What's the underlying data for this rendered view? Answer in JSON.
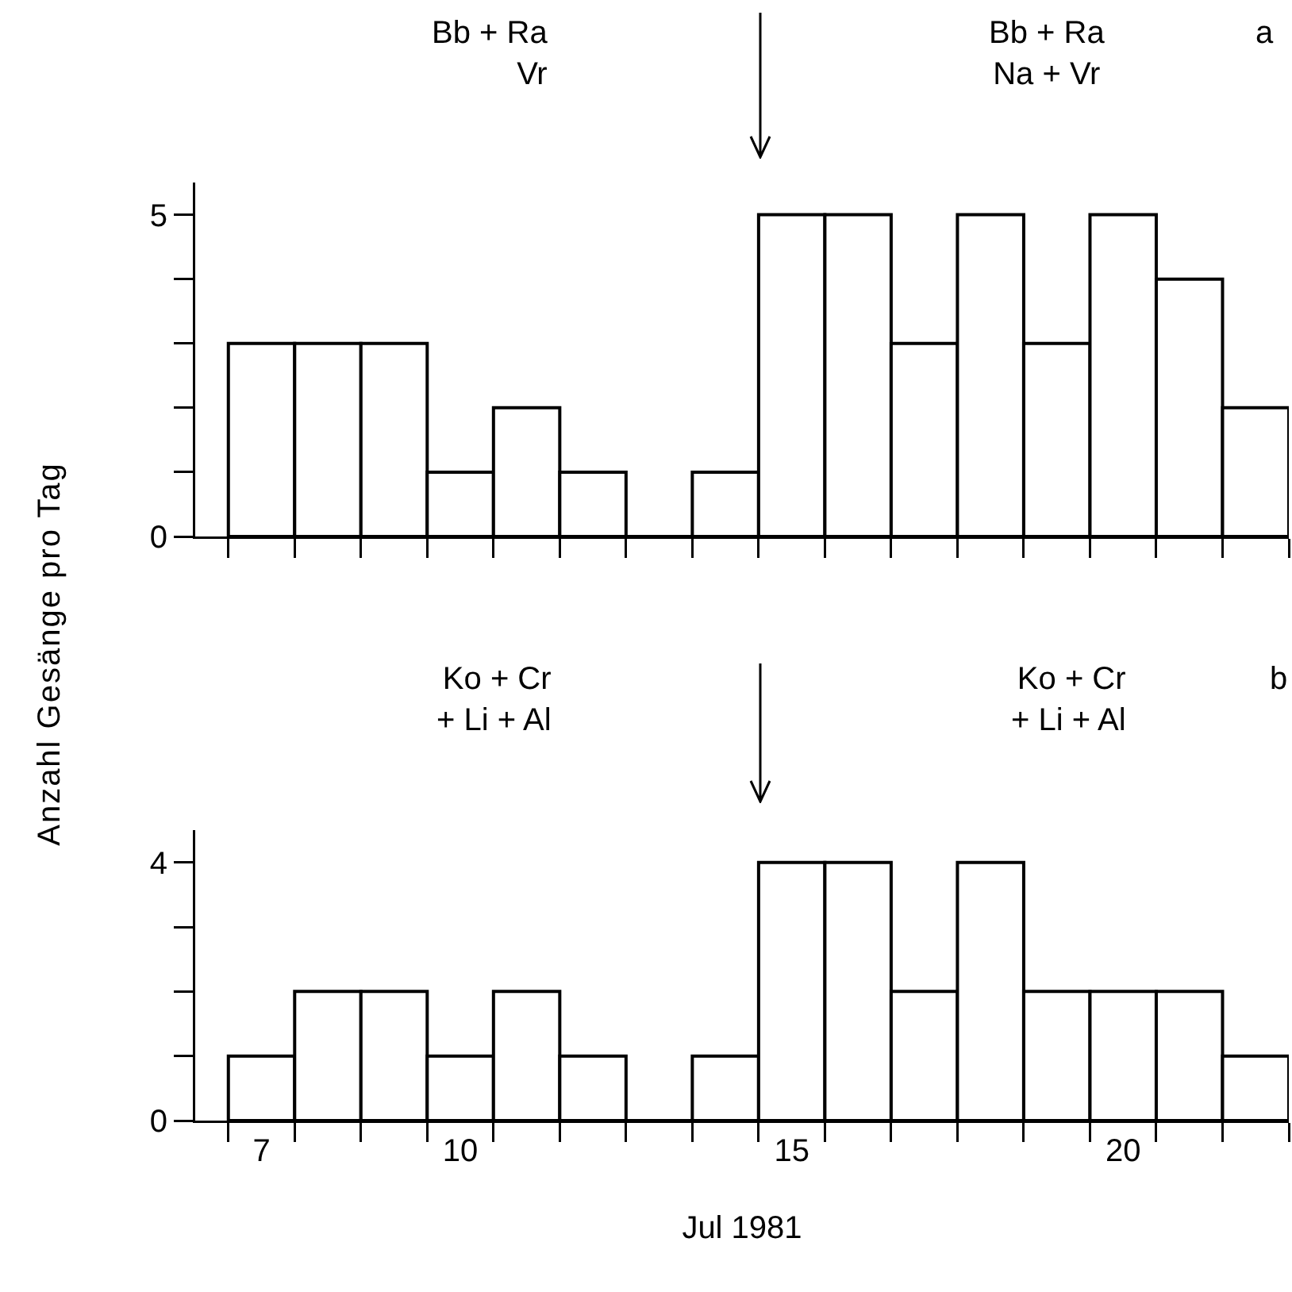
{
  "chart_data": [
    {
      "type": "histogram",
      "ylabel": "Anzahl Gesänge pro Tag",
      "annotations": [
        "Bb + Ra\nVr",
        "Bb + Ra\nNa + Vr",
        "a"
      ],
      "bins": [
        6.5,
        7.5,
        8.5,
        9.5,
        10.5,
        11.5,
        12.5,
        13.5,
        14.5,
        15.5,
        16.5,
        17.5,
        18.5,
        19.5,
        20.5,
        21.5,
        22.5
      ],
      "values": [
        3,
        3,
        3,
        1,
        2,
        1,
        0,
        1,
        5,
        5,
        3,
        5,
        3,
        5,
        4,
        2
      ],
      "xlim": [
        6,
        22.5
      ],
      "ylim": [
        0,
        5.5
      ],
      "xticks": [
        {
          "value": 6.5,
          "label": null
        },
        {
          "value": 7.5,
          "label": null
        },
        {
          "value": 8.5,
          "label": null
        },
        {
          "value": 9.5,
          "label": null
        },
        {
          "value": 10.5,
          "label": null
        },
        {
          "value": 11.5,
          "label": null
        },
        {
          "value": 12.5,
          "label": null
        },
        {
          "value": 13.5,
          "label": null
        },
        {
          "value": 14.5,
          "label": null
        },
        {
          "value": 15.5,
          "label": null
        },
        {
          "value": 16.5,
          "label": null
        },
        {
          "value": 17.5,
          "label": null
        },
        {
          "value": 18.5,
          "label": null
        },
        {
          "value": 19.5,
          "label": null
        },
        {
          "value": 20.5,
          "label": null
        },
        {
          "value": 21.5,
          "label": null
        },
        {
          "value": 22.5,
          "label": null
        }
      ],
      "yticks": [
        0,
        {
          "value": 1,
          "label": null
        },
        {
          "value": 2,
          "label": null
        },
        {
          "value": 3,
          "label": null
        },
        {
          "value": 4,
          "label": null
        },
        5
      ],
      "tick_labels": "y"
    },
    {
      "type": "histogram",
      "xlabel": "Jul 1981",
      "annotations": [
        "Ko + Cr\n+ Li + Al",
        "Ko + Cr\n+ Li + Al",
        "b"
      ],
      "bins": [
        6.5,
        7.5,
        8.5,
        9.5,
        10.5,
        11.5,
        12.5,
        13.5,
        14.5,
        15.5,
        16.5,
        17.5,
        18.5,
        19.5,
        20.5,
        21.5,
        22.5
      ],
      "values": [
        1,
        2,
        2,
        1,
        2,
        1,
        0,
        1,
        4,
        4,
        2,
        4,
        2,
        2,
        2,
        1
      ],
      "xlim": [
        6,
        22.5
      ],
      "ylim": [
        0,
        4.5
      ],
      "xticks": [
        7,
        10,
        15,
        20,
        {
          "value": 6.5,
          "label": null
        },
        {
          "value": 7.5,
          "label": null
        },
        {
          "value": 8.5,
          "label": null
        },
        {
          "value": 9.5,
          "label": null
        },
        {
          "value": 10.5,
          "label": null
        },
        {
          "value": 11.5,
          "label": null
        },
        {
          "value": 12.5,
          "label": null
        },
        {
          "value": 13.5,
          "label": null
        },
        {
          "value": 14.5,
          "label": null
        },
        {
          "value": 15.5,
          "label": null
        },
        {
          "value": 16.5,
          "label": null
        },
        {
          "value": 17.5,
          "label": null
        },
        {
          "value": 18.5,
          "label": null
        },
        {
          "value": 19.5,
          "label": null
        },
        {
          "value": 20.5,
          "label": null
        },
        {
          "value": 21.5,
          "label": null
        },
        {
          "value": 22.5,
          "label": null
        }
      ],
      "yticks": [
        0,
        {
          "value": 1,
          "label": null
        },
        {
          "value": 2,
          "label": null
        },
        {
          "value": 3,
          "label": null
        },
        4
      ]
    }
  ]
}
